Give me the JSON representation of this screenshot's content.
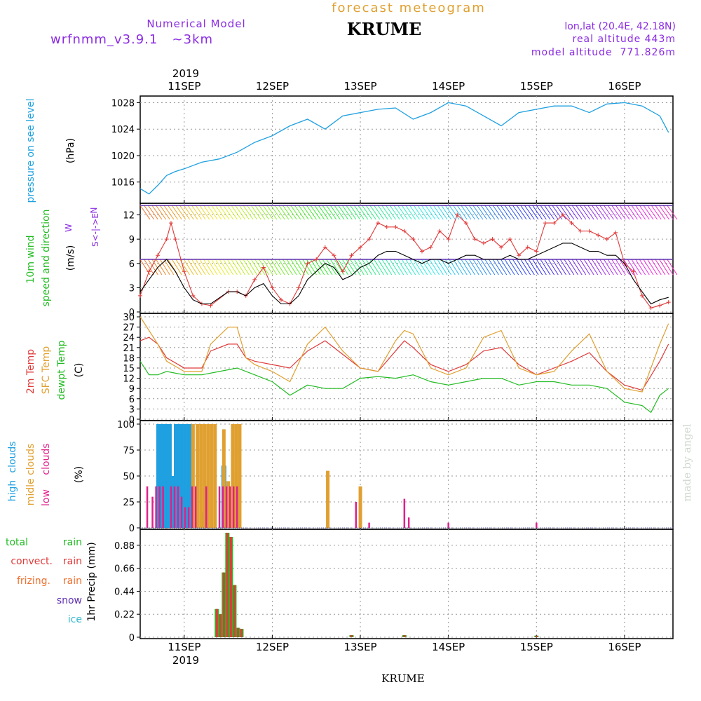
{
  "header": {
    "top_title": "forecast meteogram",
    "model_label": "Numerical Model",
    "model_name": "wrfnmm_v3.9.1   ~3km",
    "station": "KRUME",
    "coords": "lon,lat (20.4E, 42.18N)",
    "real_alt": "real altitude 443m",
    "model_alt": "model altitude  771.826m",
    "year": "2019",
    "footer_station": "KRUME",
    "credit": "made by angel"
  },
  "colors": {
    "pressure": "#1fa0e0",
    "wind_label": "#22bb22",
    "temp2m": "#e03a3a",
    "sfc": "#e0a030",
    "dew": "#22bb22",
    "high": "#1fa0e0",
    "mid": "#e0a030",
    "low": "#e0208a",
    "precip_total": "#22bb22",
    "precip_conv": "#e03a3a",
    "precip_friz": "#f07030",
    "snow": "#6030b0",
    "ice": "#30b8d0",
    "purple": "#8a2be2",
    "model": "#8a2be2",
    "title": "#e0a030"
  },
  "chart_data": {
    "type": "meteogram",
    "x_dates": [
      "11SEP",
      "12SEP",
      "13SEP",
      "14SEP",
      "15SEP",
      "16SEP"
    ],
    "panels": {
      "pressure": {
        "type": "line",
        "labels": [
          "pressure on see level",
          "(hPa)"
        ],
        "ylim": [
          1013,
          1029
        ],
        "ticks": [
          1016,
          1020,
          1024,
          1028
        ],
        "series": [
          {
            "name": "pressure on see level",
            "x": [
              10.5,
              10.6,
              10.7,
              10.8,
              10.9,
              11.0,
              11.2,
              11.4,
              11.6,
              11.8,
              12.0,
              12.2,
              12.4,
              12.6,
              12.8,
              13.0,
              13.2,
              13.4,
              13.6,
              13.8,
              14.0,
              14.2,
              14.4,
              14.6,
              14.8,
              15.0,
              15.2,
              15.4,
              15.6,
              15.8,
              16.0,
              16.2,
              16.4,
              16.5
            ],
            "y": [
              1015,
              1014.2,
              1015.5,
              1017,
              1017.6,
              1018,
              1019,
              1019.5,
              1020.5,
              1022,
              1023,
              1024.5,
              1025.5,
              1024,
              1026,
              1026.5,
              1027,
              1027.2,
              1025.5,
              1026.5,
              1028,
              1027.5,
              1026,
              1024.5,
              1026.5,
              1027,
              1027.5,
              1027.5,
              1026.5,
              1027.8,
              1028,
              1027.5,
              1026,
              1023.5
            ]
          }
        ]
      },
      "wind": {
        "type": "line",
        "labels": [
          "10m wind",
          "speed and direction",
          "(m/s)"
        ],
        "compass": [
          "N",
          "S<-|->E",
          "W"
        ],
        "ylim": [
          0,
          13
        ],
        "ticks": [
          0,
          3,
          6,
          9,
          12
        ],
        "series": [
          {
            "name": "gust",
            "x": [
              10.5,
              10.6,
              10.7,
              10.8,
              10.85,
              10.9,
              11.0,
              11.1,
              11.2,
              11.3,
              11.5,
              11.6,
              11.7,
              11.8,
              11.9,
              12.0,
              12.1,
              12.2,
              12.3,
              12.4,
              12.5,
              12.6,
              12.7,
              12.8,
              12.9,
              13.0,
              13.1,
              13.2,
              13.3,
              13.4,
              13.5,
              13.6,
              13.7,
              13.8,
              13.9,
              14.0,
              14.1,
              14.2,
              14.3,
              14.4,
              14.5,
              14.6,
              14.7,
              14.8,
              14.9,
              15.0,
              15.1,
              15.2,
              15.3,
              15.4,
              15.5,
              15.6,
              15.7,
              15.8,
              15.9,
              16.0,
              16.1,
              16.2,
              16.3,
              16.4,
              16.5
            ],
            "y": [
              2,
              5,
              7,
              9,
              11,
              9,
              5,
              2,
              1,
              0.8,
              2.5,
              2.5,
              2,
              4,
              5.5,
              3,
              1.5,
              1,
              3,
              6,
              6.5,
              8,
              7,
              5,
              7,
              8,
              9,
              11,
              10.5,
              10.5,
              10,
              9,
              7.5,
              8,
              10,
              9,
              12,
              11,
              9,
              8.5,
              9,
              8,
              9,
              7,
              8,
              7.5,
              11,
              11,
              12,
              11,
              10,
              10,
              9.5,
              9,
              9.8,
              6,
              5,
              2,
              0.5,
              0.8,
              1.2
            ]
          },
          {
            "name": "mean",
            "x": [
              10.5,
              10.6,
              10.7,
              10.8,
              10.9,
              11.0,
              11.1,
              11.2,
              11.3,
              11.5,
              11.6,
              11.7,
              11.8,
              11.9,
              12.0,
              12.1,
              12.2,
              12.3,
              12.4,
              12.5,
              12.6,
              12.7,
              12.8,
              12.9,
              13.0,
              13.1,
              13.2,
              13.3,
              13.4,
              13.5,
              13.6,
              13.7,
              13.8,
              13.9,
              14.0,
              14.1,
              14.2,
              14.3,
              14.4,
              14.5,
              14.6,
              14.7,
              14.8,
              14.9,
              15.0,
              15.1,
              15.2,
              15.3,
              15.4,
              15.5,
              15.6,
              15.7,
              15.8,
              15.9,
              16.0,
              16.1,
              16.2,
              16.3,
              16.4,
              16.5
            ],
            "y": [
              2.5,
              4,
              5.5,
              6.5,
              5,
              3,
              1.5,
              1,
              1,
              2.5,
              2.5,
              2,
              3,
              3.5,
              2,
              1,
              1,
              2,
              4,
              5,
              6,
              5.5,
              4,
              4.5,
              5.5,
              6,
              7,
              7.5,
              7.5,
              7,
              6.5,
              6,
              6.5,
              6.5,
              6,
              6.5,
              7,
              7,
              6.5,
              6.5,
              6.5,
              7,
              6.5,
              6.5,
              7,
              7.5,
              8,
              8.5,
              8.5,
              8,
              7.5,
              7.5,
              7,
              7,
              6,
              4,
              2.5,
              1,
              1.5,
              1.8
            ]
          }
        ]
      },
      "temperature": {
        "type": "line",
        "labels": [
          "2m Temp",
          "SFC Temp",
          "dewpt Temp",
          "(C)"
        ],
        "ylim": [
          0,
          30
        ],
        "ticks": [
          0,
          3,
          6,
          9,
          12,
          15,
          18,
          21,
          24,
          27,
          30
        ],
        "series": [
          {
            "name": "2m Temp",
            "x": [
              10.5,
              10.6,
              10.7,
              10.8,
              11.0,
              11.2,
              11.3,
              11.5,
              11.6,
              11.7,
              11.8,
              12.0,
              12.2,
              12.4,
              12.6,
              12.8,
              13.0,
              13.2,
              13.4,
              13.5,
              13.6,
              13.8,
              14.0,
              14.2,
              14.4,
              14.6,
              14.8,
              15.0,
              15.2,
              15.4,
              15.6,
              15.8,
              16.0,
              16.2,
              16.4,
              16.5
            ],
            "y": [
              23,
              24,
              22,
              18,
              15,
              15,
              20,
              22,
              22,
              18,
              17,
              16,
              15,
              20,
              23,
              19,
              15,
              14,
              20,
              23,
              21,
              16,
              14,
              16,
              20,
              21,
              16,
              13,
              15,
              17,
              19.5,
              14,
              10,
              8.5,
              17,
              22
            ]
          },
          {
            "name": "SFC Temp",
            "x": [
              10.5,
              10.6,
              10.7,
              10.8,
              11.0,
              11.2,
              11.3,
              11.5,
              11.6,
              11.7,
              11.8,
              12.0,
              12.2,
              12.4,
              12.6,
              12.8,
              13.0,
              13.2,
              13.4,
              13.5,
              13.6,
              13.8,
              14.0,
              14.2,
              14.4,
              14.6,
              14.8,
              15.0,
              15.2,
              15.4,
              15.6,
              15.8,
              16.0,
              16.2,
              16.4,
              16.5
            ],
            "y": [
              30,
              26,
              22,
              17,
              14,
              14,
              22,
              27,
              27,
              18,
              16,
              14,
              11,
              22,
              27,
              20,
              15,
              14,
              23,
              26,
              25,
              15,
              13,
              15,
              24,
              26,
              15,
              13,
              14,
              20,
              25,
              14,
              9,
              8,
              22,
              28
            ]
          },
          {
            "name": "dewpt Temp",
            "x": [
              10.5,
              10.6,
              10.7,
              10.8,
              11.0,
              11.2,
              11.4,
              11.6,
              11.8,
              12.0,
              12.2,
              12.4,
              12.6,
              12.8,
              13.0,
              13.2,
              13.4,
              13.6,
              13.8,
              14.0,
              14.2,
              14.4,
              14.6,
              14.8,
              15.0,
              15.2,
              15.4,
              15.6,
              15.8,
              16.0,
              16.2,
              16.3,
              16.4,
              16.5
            ],
            "y": [
              17,
              13,
              13,
              14,
              13,
              13,
              14,
              15,
              13,
              11,
              7,
              10,
              9,
              9,
              12,
              12.5,
              12,
              13,
              11,
              10,
              11,
              12,
              12,
              10,
              11,
              11,
              10,
              10,
              9,
              5,
              4,
              2,
              7,
              9
            ]
          }
        ]
      },
      "clouds": {
        "type": "bar",
        "labels": [
          "high",
          "clouds",
          "midle clouds",
          "low",
          "clouds",
          "(%)"
        ],
        "ylim": [
          0,
          100
        ],
        "ticks": [
          0,
          25,
          50,
          75,
          100
        ],
        "series": [
          {
            "name": "high clouds",
            "x": [
              10.71,
              10.75,
              10.79,
              10.83,
              10.87,
              10.91,
              10.95,
              10.99,
              11.03,
              11.07,
              11.2,
              11.45
            ],
            "y": [
              100,
              100,
              100,
              100,
              50,
              100,
              100,
              100,
              100,
              100,
              15,
              60
            ]
          },
          {
            "name": "midle clouds",
            "x": [
              11.1,
              11.15,
              11.19,
              11.23,
              11.27,
              11.31,
              11.35,
              11.45,
              11.5,
              11.55,
              11.59,
              11.63,
              12.63,
              13.0
            ],
            "y": [
              100,
              100,
              100,
              100,
              100,
              100,
              100,
              95,
              45,
              100,
              100,
              100,
              55,
              40
            ]
          },
          {
            "name": "low clouds",
            "x": [
              10.58,
              10.64,
              10.68,
              10.72,
              10.76,
              10.85,
              10.89,
              10.93,
              10.97,
              11.01,
              11.05,
              11.09,
              11.13,
              11.25,
              11.4,
              11.44,
              11.48,
              11.52,
              11.56,
              11.6,
              12.95,
              13.1,
              13.5,
              13.55,
              14.0,
              15.0
            ],
            "y": [
              40,
              30,
              40,
              40,
              40,
              40,
              40,
              40,
              30,
              20,
              20,
              40,
              40,
              40,
              40,
              40,
              40,
              40,
              40,
              40,
              25,
              5,
              28,
              10,
              5,
              5
            ]
          }
        ]
      },
      "precip": {
        "type": "bar",
        "labels": [
          "total",
          "rain",
          "convect.",
          "rain",
          "frizing.",
          "rain",
          "snow",
          "ice",
          "1hr Precip (mm)"
        ],
        "ylim": [
          0,
          1
        ],
        "ticks": [
          0,
          0.22,
          0.44,
          0.66,
          0.88
        ],
        "series": [
          {
            "name": "total rain",
            "x": [
              11.37,
              11.41,
              11.45,
              11.49,
              11.53,
              11.57,
              11.61,
              11.65,
              12.9,
              13.5,
              15.0
            ],
            "y": [
              0.27,
              0.22,
              0.62,
              1.0,
              0.96,
              0.5,
              0.09,
              0.08,
              0.02,
              0.02,
              0.015
            ]
          }
        ]
      }
    }
  }
}
